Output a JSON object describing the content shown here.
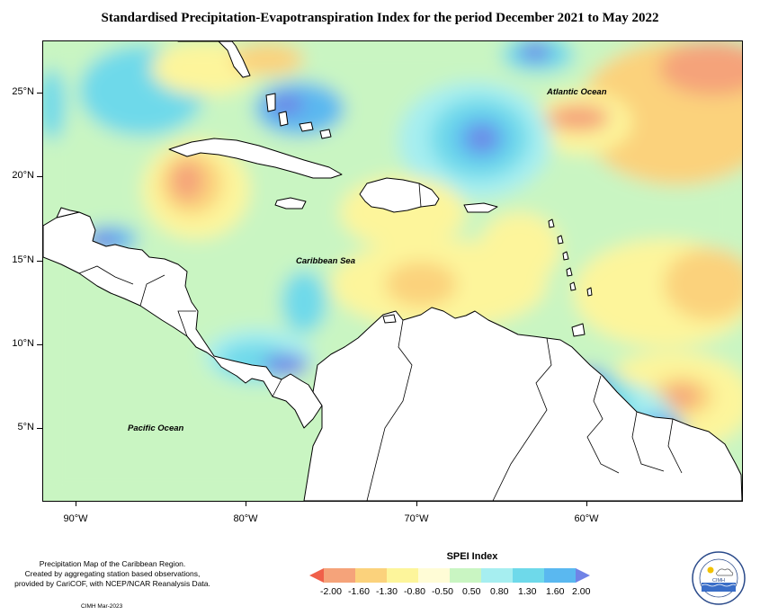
{
  "title": "Standardised Precipitation-Evapotranspiration Index for the period December 2021 to May 2022",
  "map_labels": {
    "atlantic": "Atlantic Ocean",
    "caribbean": "Caribbean Sea",
    "pacific": "Pacific Ocean"
  },
  "y_axis_labels": [
    "25°N",
    "20°N",
    "15°N",
    "10°N",
    "5°N"
  ],
  "x_axis_labels": [
    "90°W",
    "80°W",
    "70°W",
    "60°W"
  ],
  "legend": {
    "title": "SPEI Index",
    "values": [
      "-2.00",
      "-1.60",
      "-1.30",
      "-0.80",
      "-0.50",
      "0.50",
      "0.80",
      "1.30",
      "1.60",
      "2.00"
    ],
    "colors": [
      "#f0604a",
      "#f5a37a",
      "#fbd27c",
      "#fdf59b",
      "#fffcd6",
      "#c9f5c2",
      "#a6eef0",
      "#6ed9ea",
      "#5ab8f0",
      "#7083e6"
    ]
  },
  "credit": {
    "line1": "Precipitation Map of the Caribbean Region.",
    "line2": "Created by aggregating station based observations,",
    "line3": "provided by CariCOF, with NCEP/NCAR Reanalysis Data."
  },
  "footer": "CIMH Mar-2023",
  "logo": {
    "text": "CIMH",
    "icon": "cimh-logo-icon"
  },
  "colors": {
    "land": "#ffffff",
    "background_field": "#c9f5c2",
    "coast": "#000000"
  }
}
